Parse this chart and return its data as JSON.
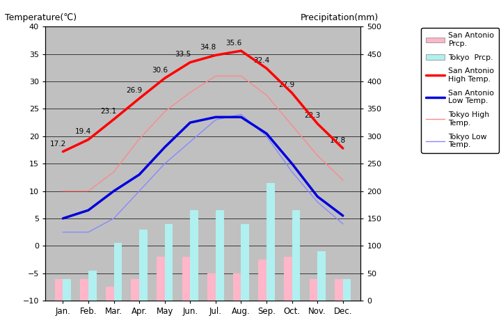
{
  "months": [
    "Jan.",
    "Feb.",
    "Mar.",
    "Apr.",
    "May",
    "Jun.",
    "Jul.",
    "Aug.",
    "Sep.",
    "Oct.",
    "Nov.",
    "Dec."
  ],
  "sa_high_temp": [
    17.2,
    19.4,
    23.1,
    26.9,
    30.6,
    33.5,
    34.8,
    35.6,
    32.4,
    27.9,
    22.3,
    17.8
  ],
  "sa_low_temp": [
    5.0,
    6.5,
    10.0,
    13.0,
    18.0,
    22.5,
    23.5,
    23.5,
    20.5,
    15.0,
    9.0,
    5.5
  ],
  "tokyo_high_temp": [
    10.0,
    10.0,
    13.5,
    19.5,
    24.5,
    28.0,
    31.0,
    31.0,
    27.5,
    22.0,
    16.5,
    12.0
  ],
  "tokyo_low_temp": [
    2.5,
    2.5,
    5.0,
    10.0,
    15.0,
    19.0,
    23.0,
    24.0,
    20.0,
    13.5,
    8.0,
    4.0
  ],
  "sa_precip_mm": [
    40,
    40,
    25,
    40,
    80,
    80,
    50,
    50,
    75,
    80,
    40,
    40
  ],
  "tokyo_precip_mm": [
    40,
    55,
    105,
    130,
    140,
    165,
    165,
    140,
    215,
    165,
    90,
    40
  ],
  "sa_high_labels": [
    "17.2",
    "19.4",
    "23.1",
    "26.9",
    "30.6",
    "33.5",
    "34.8",
    "35.6",
    "32.4",
    "27.9",
    "22.3",
    "17.8"
  ],
  "temp_ylim": [
    -10,
    40
  ],
  "precip_ylim": [
    0,
    500
  ],
  "temp_range": 50,
  "precip_range": 500,
  "bg_color": "#c0c0c0",
  "sa_high_color": "#ff0000",
  "sa_low_color": "#0000dd",
  "tokyo_high_color": "#ff8888",
  "tokyo_low_color": "#8888ff",
  "sa_precip_color": "#ffb6c8",
  "tokyo_precip_color": "#b0f0f0",
  "grid_color": "#000000",
  "title_left": "Temperature(℃)",
  "title_right": "Precipitation(mm)",
  "bar_width": 0.32
}
